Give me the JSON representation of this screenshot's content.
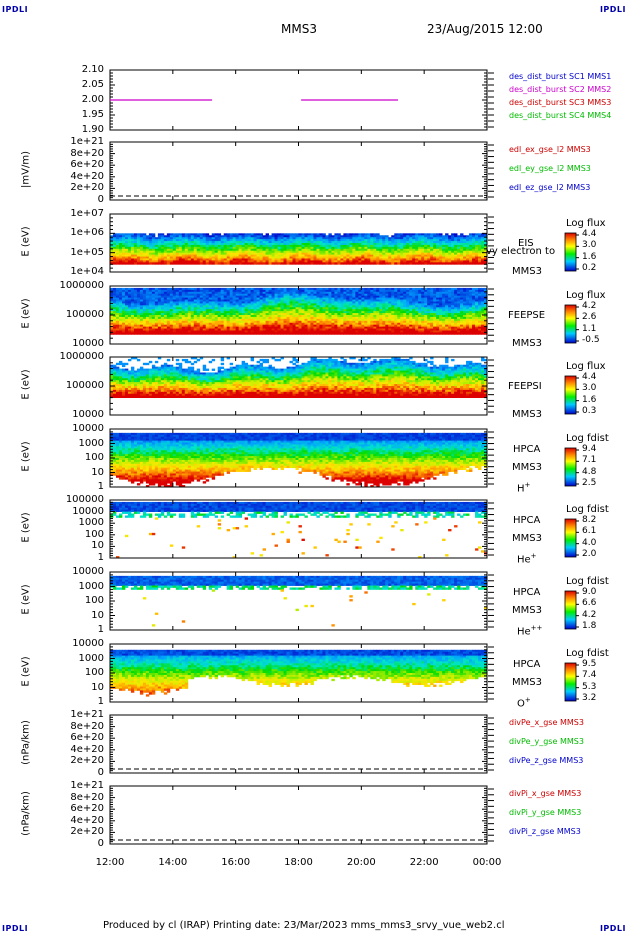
{
  "corners": {
    "tl": "IPDLI",
    "tr": "IPDLI",
    "bl": "IPDLI",
    "br": "IPDLI"
  },
  "header": {
    "spacecraft": "MMS3",
    "datetime": "23/Aug/2015 12:00"
  },
  "footer": {
    "text": "Produced by cl (IRAP)   Printing date: 23/Mar/2023   mms_mms3_srvy_vue_web2.cl"
  },
  "time_axis": {
    "ticks": [
      "12:00",
      "14:00",
      "16:00",
      "18:00",
      "20:00",
      "22:00",
      "00:00"
    ]
  },
  "colors": {
    "purple": "#cc00cc",
    "red": "#cc0000",
    "green": "#00bb00",
    "blue": "#0000cc"
  },
  "panels": [
    {
      "ylabel": "",
      "ticks": [
        "2.10",
        "2.05",
        "2.00",
        "1.95",
        "1.90"
      ],
      "legend": [
        {
          "text": "des_dist_burst SC1 MMS1",
          "color": "#0000cc"
        },
        {
          "text": "des_dist_burst SC2 MMS2",
          "color": "#cc00cc"
        },
        {
          "text": "des_dist_burst SC3 MMS3",
          "color": "#cc0000"
        },
        {
          "text": "des_dist_burst SC4 MMS4",
          "color": "#00bb00"
        }
      ]
    },
    {
      "ylabel": "|mV/m)",
      "ticks": [
        "1e+21",
        "8e+20",
        "6e+20",
        "4e+20",
        "2e+20",
        "0"
      ],
      "legend": [
        {
          "text": "edl_ex_gse_l2 MMS3",
          "color": "#cc0000"
        },
        {
          "text": "edl_ey_gse_l2 MMS3",
          "color": "#00bb00"
        },
        {
          "text": "edl_ez_gse_l2 MMS3",
          "color": "#0000cc"
        }
      ]
    },
    {
      "ylabel": "E (eV)",
      "ticks": [
        "1e+07",
        "1e+06",
        "1e+05",
        "1e+04"
      ],
      "right_labels": [
        "EIS",
        "vy electron to",
        "MMS3"
      ],
      "cb_title": "Log flux",
      "cb_ticks": [
        "4.4",
        "3.0",
        "1.6",
        "0.2"
      ]
    },
    {
      "ylabel": "E (eV)",
      "ticks": [
        "1000000",
        "100000",
        "10000"
      ],
      "right_labels": [
        "FEEPSE",
        "MMS3"
      ],
      "cb_title": "Log flux",
      "cb_ticks": [
        "4.2",
        "2.6",
        "1.1",
        "-0.5"
      ]
    },
    {
      "ylabel": "E (eV)",
      "ticks": [
        "1000000",
        "100000",
        "10000"
      ],
      "right_labels": [
        "FEEPSI",
        "MMS3"
      ],
      "cb_title": "Log flux",
      "cb_ticks": [
        "4.4",
        "3.0",
        "1.6",
        "0.3"
      ]
    },
    {
      "ylabel": "E (eV)",
      "ticks": [
        "10000",
        "1000",
        "100",
        "10",
        "1"
      ],
      "right_labels": [
        "HPCA",
        "MMS3"
      ],
      "ion": "H",
      "ion_sup": "+",
      "cb_title": "Log fdist",
      "cb_ticks": [
        "9.4",
        "7.1",
        "4.8",
        "2.5"
      ]
    },
    {
      "ylabel": "E (eV)",
      "ticks": [
        "100000",
        "10000",
        "1000",
        "100",
        "10",
        "1"
      ],
      "right_labels": [
        "HPCA",
        "MMS3"
      ],
      "ion": "He",
      "ion_sup": "+",
      "cb_title": "Log fdist",
      "cb_ticks": [
        "8.2",
        "6.1",
        "4.0",
        "2.0"
      ]
    },
    {
      "ylabel": "E (eV)",
      "ticks": [
        "10000",
        "1000",
        "100",
        "10",
        "1"
      ],
      "right_labels": [
        "HPCA",
        "MMS3"
      ],
      "ion": "He",
      "ion_sup": "++",
      "cb_title": "Log fdist",
      "cb_ticks": [
        "9.0",
        "6.6",
        "4.2",
        "1.8"
      ]
    },
    {
      "ylabel": "E (eV)",
      "ticks": [
        "10000",
        "1000",
        "100",
        "10",
        "1"
      ],
      "right_labels": [
        "HPCA",
        "MMS3"
      ],
      "ion": "O",
      "ion_sup": "+",
      "cb_title": "Log fdist",
      "cb_ticks": [
        "9.5",
        "7.4",
        "5.3",
        "3.2"
      ]
    },
    {
      "ylabel": "(nPa/km)",
      "ticks": [
        "1e+21",
        "8e+20",
        "6e+20",
        "4e+20",
        "2e+20",
        "0"
      ],
      "legend": [
        {
          "text": "divPe_x_gse MMS3",
          "color": "#cc0000"
        },
        {
          "text": "divPe_y_gse MMS3",
          "color": "#00bb00"
        },
        {
          "text": "divPe_z_gse MMS3",
          "color": "#0000cc"
        }
      ]
    },
    {
      "ylabel": "(nPa/km)",
      "ticks": [
        "1e+21",
        "8e+20",
        "6e+20",
        "4e+20",
        "2e+20",
        "0"
      ],
      "legend": [
        {
          "text": "divPi_x_gse MMS3",
          "color": "#cc0000"
        },
        {
          "text": "divPi_y_gse MMS3",
          "color": "#00bb00"
        },
        {
          "text": "divPi_z_gse MMS3",
          "color": "#0000cc"
        }
      ]
    }
  ],
  "chart_data": [
    {
      "type": "line",
      "x_range": [
        "12:00",
        "00:00"
      ],
      "ylim": [
        1.9,
        2.1
      ],
      "series": [
        {
          "name": "des_dist_burst SC2 MMS2",
          "color": "#cc00cc",
          "segments": [
            {
              "x": [
                "12:00",
                "15:15"
              ],
              "y": 2.0
            },
            {
              "x": [
                "18:05",
                "21:10"
              ],
              "y": 2.0
            }
          ]
        }
      ]
    },
    {
      "type": "line",
      "ylim": [
        0,
        1e+21
      ],
      "series": [
        {
          "name": "edl_ex_gse_l2 MMS3"
        },
        {
          "name": "edl_ey_gse_l2 MMS3"
        },
        {
          "name": "edl_ez_gse_l2 MMS3"
        }
      ]
    },
    {
      "type": "heatmap",
      "ylim": [
        10000.0,
        10000000.0
      ],
      "y_scale": "log",
      "colorbar": "Log flux",
      "clim": [
        0.2,
        4.4
      ]
    },
    {
      "type": "heatmap",
      "ylim": [
        10000.0,
        1000000.0
      ],
      "y_scale": "log",
      "colorbar": "Log flux",
      "clim": [
        -0.5,
        4.2
      ]
    },
    {
      "type": "heatmap",
      "ylim": [
        10000.0,
        1000000.0
      ],
      "y_scale": "log",
      "colorbar": "Log flux",
      "clim": [
        0.3,
        4.4
      ]
    },
    {
      "type": "heatmap",
      "ylim": [
        1,
        10000.0
      ],
      "y_scale": "log",
      "colorbar": "Log fdist",
      "clim": [
        2.5,
        9.4
      ]
    },
    {
      "type": "heatmap",
      "ylim": [
        1,
        100000.0
      ],
      "y_scale": "log",
      "colorbar": "Log fdist",
      "clim": [
        2.0,
        8.2
      ]
    },
    {
      "type": "heatmap",
      "ylim": [
        1,
        10000.0
      ],
      "y_scale": "log",
      "colorbar": "Log fdist",
      "clim": [
        1.8,
        9.0
      ]
    },
    {
      "type": "heatmap",
      "ylim": [
        1,
        10000.0
      ],
      "y_scale": "log",
      "colorbar": "Log fdist",
      "clim": [
        3.2,
        9.5
      ]
    },
    {
      "type": "line",
      "ylim": [
        0,
        1e+21
      ],
      "series": [
        {
          "name": "divPe_x_gse MMS3"
        },
        {
          "name": "divPe_y_gse MMS3"
        },
        {
          "name": "divPe_z_gse MMS3"
        }
      ]
    },
    {
      "type": "line",
      "ylim": [
        0,
        1e+21
      ],
      "series": [
        {
          "name": "divPi_x_gse MMS3"
        },
        {
          "name": "divPi_y_gse MMS3"
        },
        {
          "name": "divPi_z_gse MMS3"
        }
      ]
    }
  ]
}
